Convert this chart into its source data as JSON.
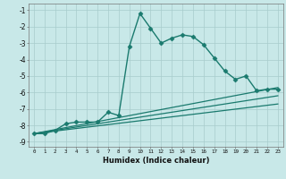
{
  "xlabel": "Humidex (Indice chaleur)",
  "background_color": "#c8e8e8",
  "grid_color": "#a8cccc",
  "line_color": "#1a7a6e",
  "xlim": [
    -0.5,
    23.5
  ],
  "ylim": [
    -9.3,
    -0.6
  ],
  "xticks": [
    0,
    1,
    2,
    3,
    4,
    5,
    6,
    7,
    8,
    9,
    10,
    11,
    12,
    13,
    14,
    15,
    16,
    17,
    18,
    19,
    20,
    21,
    22,
    23
  ],
  "yticks": [
    -9,
    -8,
    -7,
    -6,
    -5,
    -4,
    -3,
    -2,
    -1
  ],
  "series": [
    {
      "x": [
        0,
        1,
        2,
        3,
        4,
        5,
        6,
        7,
        8,
        9,
        10,
        11,
        12,
        13,
        14,
        15,
        16,
        17,
        18,
        19,
        20,
        21,
        22,
        23
      ],
      "y": [
        -8.5,
        -8.5,
        -8.3,
        -7.9,
        -7.8,
        -7.8,
        -7.8,
        -7.2,
        -7.4,
        -3.2,
        -1.2,
        -2.1,
        -3.0,
        -2.7,
        -2.5,
        -2.6,
        -3.1,
        -3.9,
        -4.7,
        -5.2,
        -5.0,
        -5.9,
        -5.8,
        -5.8
      ],
      "marker": "D",
      "markersize": 2.5,
      "linewidth": 1.0
    },
    {
      "x": [
        0,
        23
      ],
      "y": [
        -8.5,
        -5.7
      ],
      "marker": null,
      "linewidth": 0.9
    },
    {
      "x": [
        0,
        23
      ],
      "y": [
        -8.5,
        -6.2
      ],
      "marker": null,
      "linewidth": 0.9
    },
    {
      "x": [
        0,
        23
      ],
      "y": [
        -8.5,
        -6.7
      ],
      "marker": null,
      "linewidth": 0.9
    }
  ]
}
